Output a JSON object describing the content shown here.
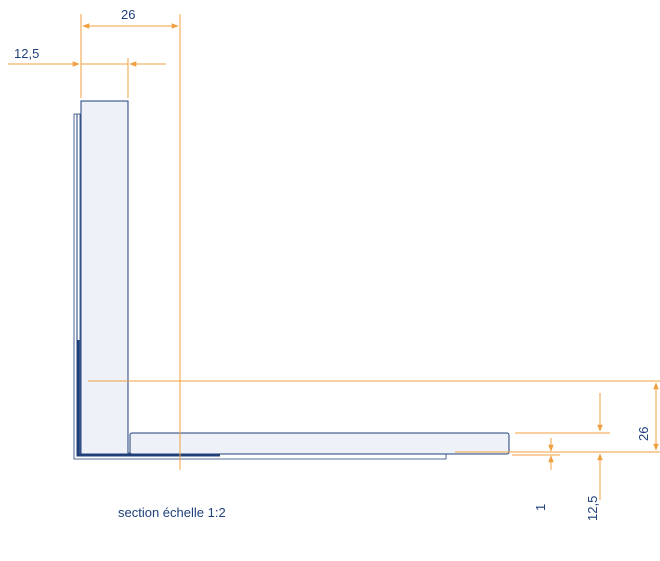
{
  "dimensions": {
    "top_width": "26",
    "top_thickness": "12,5",
    "right_height": "26",
    "right_thickness": "12,5",
    "gap": "1"
  },
  "caption": "section échelle 1:2",
  "colors": {
    "outline": "#1f3f7a",
    "fill": "#eef2f8",
    "dimension": "#f0a040",
    "text": "#1f3f7a"
  }
}
